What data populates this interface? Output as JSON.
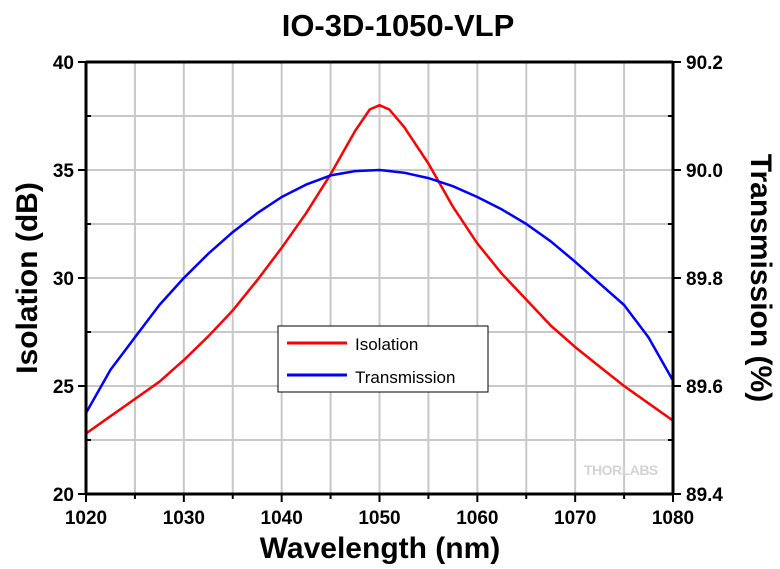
{
  "chart_data": {
    "type": "line",
    "title": "IO-3D-1050-VLP",
    "xlabel": "Wavelength (nm)",
    "ylabel": "Isolation (dB)",
    "y2label": "Transmission (%)",
    "xlim": [
      1020,
      1080
    ],
    "ylim": [
      20,
      40
    ],
    "y2lim": [
      89.4,
      90.2
    ],
    "xticks": [
      "1020",
      "1030",
      "1040",
      "1050",
      "1060",
      "1070",
      "1080"
    ],
    "yticks": [
      "20",
      "25",
      "30",
      "35",
      "40"
    ],
    "y2ticks": [
      "89.4",
      "89.6",
      "89.8",
      "90.0",
      "90.2"
    ],
    "grid": true,
    "legend_position": "center",
    "watermark": "THORLABS",
    "series": [
      {
        "name": "Isolation",
        "axis": "left",
        "color": "#ff0000",
        "x": [
          1020,
          1022.5,
          1025,
          1027.5,
          1030,
          1032.5,
          1035,
          1037.5,
          1040,
          1042.5,
          1045,
          1047.5,
          1049,
          1050,
          1051,
          1052.5,
          1055,
          1057.5,
          1060,
          1062.5,
          1065,
          1067.5,
          1070,
          1072.5,
          1075,
          1077.5,
          1080
        ],
        "y": [
          22.8,
          23.6,
          24.4,
          25.2,
          26.2,
          27.3,
          28.5,
          29.9,
          31.4,
          33.0,
          34.8,
          36.8,
          37.8,
          38.0,
          37.8,
          37.0,
          35.3,
          33.3,
          31.6,
          30.2,
          29.0,
          27.8,
          26.8,
          25.9,
          25.0,
          24.2,
          23.4
        ]
      },
      {
        "name": "Transmission",
        "axis": "right",
        "color": "#0000ff",
        "x": [
          1020,
          1022.5,
          1025,
          1027.5,
          1030,
          1032.5,
          1035,
          1037.5,
          1040,
          1042.5,
          1045,
          1047.5,
          1050,
          1052.5,
          1055,
          1057.5,
          1060,
          1062.5,
          1065,
          1067.5,
          1070,
          1072.5,
          1075,
          1077.5,
          1080
        ],
        "y": [
          89.55,
          89.63,
          89.69,
          89.75,
          89.8,
          89.845,
          89.885,
          89.92,
          89.95,
          89.973,
          89.99,
          89.998,
          90.0,
          89.995,
          89.985,
          89.97,
          89.95,
          89.927,
          89.9,
          89.868,
          89.83,
          89.79,
          89.75,
          89.69,
          89.61
        ]
      }
    ]
  }
}
